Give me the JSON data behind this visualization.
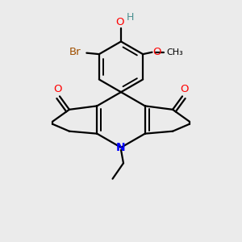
{
  "bg_color": "#ebebeb",
  "bond_color": "#000000",
  "atom_colors": {
    "O": "#ff0000",
    "N": "#0000ff",
    "Br": "#a05000",
    "H_label": "#4a9090"
  },
  "line_width": 1.6,
  "figsize": [
    3.0,
    3.0
  ],
  "dpi": 100,
  "xlim": [
    0.0,
    1.0
  ],
  "ylim": [
    0.05,
    1.05
  ]
}
